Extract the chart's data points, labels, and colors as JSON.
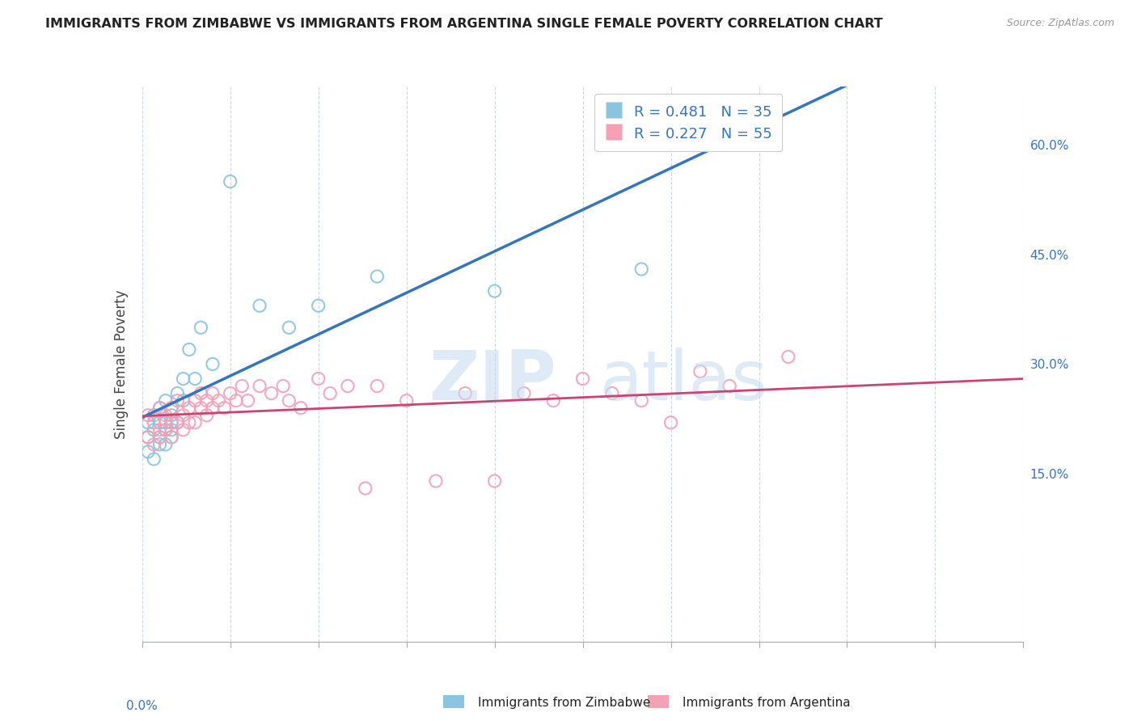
{
  "title": "IMMIGRANTS FROM ZIMBABWE VS IMMIGRANTS FROM ARGENTINA SINGLE FEMALE POVERTY CORRELATION CHART",
  "source": "Source: ZipAtlas.com",
  "ylabel": "Single Female Poverty",
  "legend_label1": "Immigrants from Zimbabwe",
  "legend_label2": "Immigrants from Argentina",
  "r1": 0.481,
  "n1": 35,
  "r2": 0.227,
  "n2": 55,
  "color_zimbabwe": "#89c4e1",
  "color_argentina": "#f4a0b5",
  "color_line_zimbabwe": "#3575c0",
  "color_line_argentina": "#d04070",
  "watermark_zip": "ZIP",
  "watermark_atlas": "atlas",
  "xlim": [
    0.0,
    0.15
  ],
  "ylim": [
    -0.08,
    0.68
  ],
  "right_yticks": [
    0.15,
    0.3,
    0.45,
    0.6
  ],
  "right_yticklabels": [
    "15.0%",
    "30.0%",
    "45.0%",
    "60.0%"
  ],
  "zimbabwe_x": [
    0.001,
    0.001,
    0.001,
    0.002,
    0.002,
    0.002,
    0.003,
    0.003,
    0.003,
    0.003,
    0.004,
    0.004,
    0.004,
    0.004,
    0.005,
    0.005,
    0.005,
    0.005,
    0.005,
    0.006,
    0.006,
    0.007,
    0.007,
    0.008,
    0.009,
    0.01,
    0.012,
    0.015,
    0.02,
    0.025,
    0.03,
    0.04,
    0.06,
    0.085,
    0.095
  ],
  "zimbabwe_y": [
    0.2,
    0.22,
    0.18,
    0.21,
    0.23,
    0.17,
    0.22,
    0.2,
    0.24,
    0.19,
    0.21,
    0.22,
    0.19,
    0.25,
    0.23,
    0.2,
    0.22,
    0.21,
    0.24,
    0.26,
    0.22,
    0.28,
    0.25,
    0.32,
    0.28,
    0.35,
    0.3,
    0.55,
    0.38,
    0.35,
    0.38,
    0.42,
    0.4,
    0.43,
    0.63
  ],
  "argentina_x": [
    0.001,
    0.001,
    0.002,
    0.002,
    0.003,
    0.003,
    0.003,
    0.004,
    0.004,
    0.005,
    0.005,
    0.005,
    0.006,
    0.006,
    0.007,
    0.007,
    0.008,
    0.008,
    0.009,
    0.009,
    0.01,
    0.01,
    0.011,
    0.011,
    0.012,
    0.012,
    0.013,
    0.014,
    0.015,
    0.016,
    0.017,
    0.018,
    0.02,
    0.022,
    0.024,
    0.025,
    0.027,
    0.03,
    0.032,
    0.035,
    0.038,
    0.04,
    0.045,
    0.05,
    0.055,
    0.06,
    0.065,
    0.07,
    0.075,
    0.08,
    0.085,
    0.09,
    0.095,
    0.1,
    0.11
  ],
  "argentina_y": [
    0.23,
    0.2,
    0.22,
    0.19,
    0.21,
    0.24,
    0.2,
    0.23,
    0.21,
    0.22,
    0.24,
    0.2,
    0.22,
    0.25,
    0.23,
    0.21,
    0.24,
    0.22,
    0.25,
    0.22,
    0.24,
    0.26,
    0.23,
    0.25,
    0.24,
    0.26,
    0.25,
    0.24,
    0.26,
    0.25,
    0.27,
    0.25,
    0.27,
    0.26,
    0.27,
    0.25,
    0.24,
    0.28,
    0.26,
    0.27,
    0.13,
    0.27,
    0.25,
    0.14,
    0.26,
    0.14,
    0.26,
    0.25,
    0.28,
    0.26,
    0.25,
    0.22,
    0.29,
    0.27,
    0.31
  ]
}
